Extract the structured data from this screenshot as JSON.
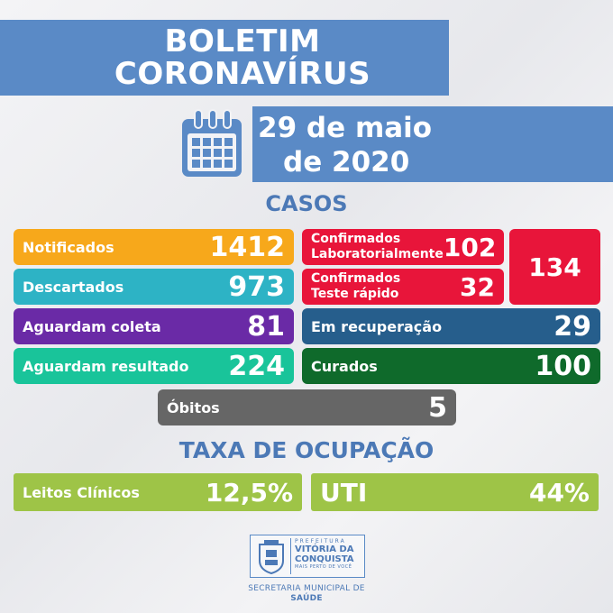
{
  "header": {
    "title_line1": "BOLETIM",
    "title_line2": "CORONAVÍRUS",
    "date_line1": "29 de maio",
    "date_line2": "de 2020"
  },
  "cases": {
    "section_title": "CASOS",
    "notificados": {
      "label": "Notificados",
      "value": "1412"
    },
    "descartados": {
      "label": "Descartados",
      "value": "973"
    },
    "aguardam_coleta": {
      "label": "Aguardam coleta",
      "value": "81"
    },
    "aguardam_resultado": {
      "label": "Aguardam resultado",
      "value": "224"
    },
    "conf_lab": {
      "label_line1": "Confirmados",
      "label_line2": "Laboratorialmente",
      "value": "102"
    },
    "conf_teste": {
      "label_line1": "Confirmados",
      "label_line2": "Teste rápido",
      "value": "32"
    },
    "confirmados_total": "134",
    "em_recuperacao": {
      "label": "Em recuperação",
      "value": "29"
    },
    "curados": {
      "label": "Curados",
      "value": "100"
    },
    "obitos": {
      "label": "Óbitos",
      "value": "5"
    }
  },
  "ocupacao": {
    "section_title": "TAXA DE OCUPAÇÃO",
    "leitos": {
      "label": "Leitos Clínicos",
      "value": "12,5%"
    },
    "uti": {
      "label": "UTI",
      "value": "44%"
    }
  },
  "footer": {
    "prefeitura": "PREFEITURA",
    "city_line1": "VITÓRIA DA",
    "city_line2": "CONQUISTA",
    "tagline": "MAIS PERTO DE VOCÊ",
    "secretaria_line1": "SECRETARIA MUNICIPAL DE",
    "secretaria_line2": "SAÚDE"
  },
  "colors": {
    "blue": "#5a8ac6",
    "orange": "#f7a81b",
    "teal": "#2db3c5",
    "purple": "#6a2aa6",
    "green_teal": "#19c49a",
    "red": "#e8153a",
    "dark_blue": "#265e8c",
    "dark_green": "#0f6a2b",
    "gray": "#666666",
    "lime": "#9ec447"
  }
}
